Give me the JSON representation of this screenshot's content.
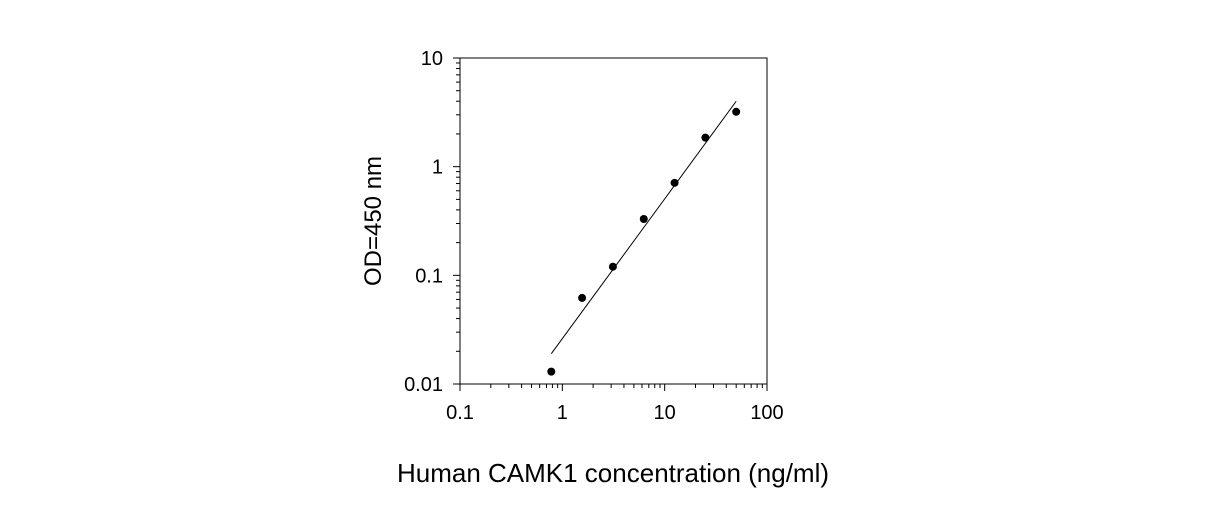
{
  "chart_data": {
    "type": "scatter",
    "xlabel": "Human CAMK1 concentration (ng/ml)",
    "ylabel": "OD=450 nm",
    "x_scale": "log",
    "y_scale": "log",
    "xlim": [
      0.1,
      100
    ],
    "ylim": [
      0.01,
      10
    ],
    "x_tick_labels": [
      "0.1",
      "1",
      "10",
      "100"
    ],
    "y_tick_labels": [
      "0.01",
      "0.1",
      "1",
      "10"
    ],
    "grid": false,
    "legend": "none",
    "series": [
      {
        "points": [
          {
            "x": 0.78,
            "y": 0.013
          },
          {
            "x": 1.56,
            "y": 0.062
          },
          {
            "x": 3.12,
            "y": 0.12
          },
          {
            "x": 6.25,
            "y": 0.33
          },
          {
            "x": 12.5,
            "y": 0.71
          },
          {
            "x": 25,
            "y": 1.85
          },
          {
            "x": 50,
            "y": 3.2
          }
        ]
      }
    ],
    "fit_line": {
      "x": [
        0.78,
        50
      ],
      "y": [
        0.019,
        4.0
      ]
    },
    "colors": {
      "marker": "#000000",
      "line": "#000000",
      "axis": "#000000"
    }
  }
}
